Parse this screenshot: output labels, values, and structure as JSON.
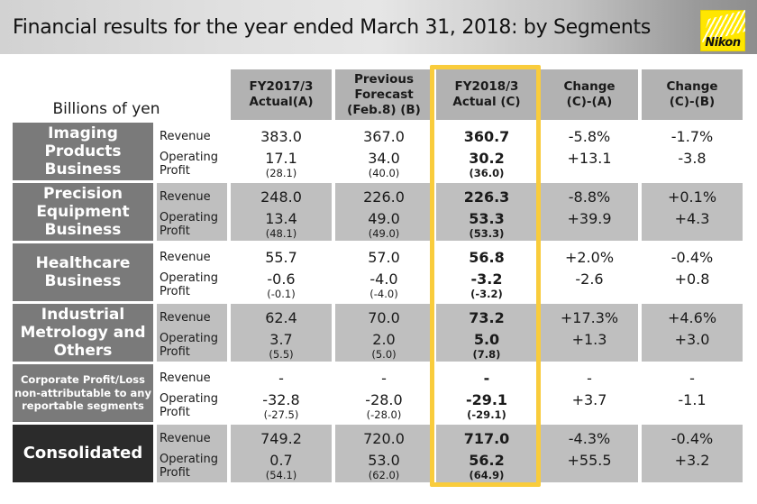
{
  "title": "Financial results for the year ended March 31, 2018: by Segments",
  "logo_text": "Nikon",
  "unit_label": "Billions of yen",
  "row_labels": {
    "revenue": "Revenue",
    "operating_profit": "Operating\nProfit"
  },
  "header": {
    "cols": [
      {
        "lines": [
          "FY2017/3",
          "Actual(A)"
        ]
      },
      {
        "lines": [
          "Previous",
          "Forecast",
          "(Feb.8) (B)"
        ]
      },
      {
        "lines": [
          "FY2018/3",
          "Actual (C)"
        ]
      },
      {
        "lines": [
          "Change",
          "(C)-(A)"
        ]
      },
      {
        "lines": [
          "Change",
          "(C)-(B)"
        ]
      }
    ]
  },
  "segments": [
    {
      "name": "Imaging Products Business",
      "revenue": {
        "a": "383.0",
        "b": "367.0",
        "c": "360.7",
        "ca": "-5.8%",
        "cb": "-1.7%"
      },
      "op": {
        "a": "17.1",
        "a_paren": "(28.1)",
        "b": "34.0",
        "b_paren": "(40.0)",
        "c": "30.2",
        "c_paren": "(36.0)",
        "ca": "+13.1",
        "cb": "-3.8"
      }
    },
    {
      "name": "Precision Equipment Business",
      "revenue": {
        "a": "248.0",
        "b": "226.0",
        "c": "226.3",
        "ca": "-8.8%",
        "cb": "+0.1%"
      },
      "op": {
        "a": "13.4",
        "a_paren": "(48.1)",
        "b": "49.0",
        "b_paren": "(49.0)",
        "c": "53.3",
        "c_paren": "(53.3)",
        "ca": "+39.9",
        "cb": "+4.3"
      }
    },
    {
      "name": "Healthcare Business",
      "revenue": {
        "a": "55.7",
        "b": "57.0",
        "c": "56.8",
        "ca": "+2.0%",
        "cb": "-0.4%"
      },
      "op": {
        "a": "-0.6",
        "a_paren": "(-0.1)",
        "b": "-4.0",
        "b_paren": "(-4.0)",
        "c": "-3.2",
        "c_paren": "(-3.2)",
        "ca": "-2.6",
        "cb": "+0.8"
      }
    },
    {
      "name": "Industrial Metrology and Others",
      "revenue": {
        "a": "62.4",
        "b": "70.0",
        "c": "73.2",
        "ca": "+17.3%",
        "cb": "+4.6%"
      },
      "op": {
        "a": "3.7",
        "a_paren": "(5.5)",
        "b": "2.0",
        "b_paren": "(5.0)",
        "c": "5.0",
        "c_paren": "(7.8)",
        "ca": "+1.3",
        "cb": "+3.0"
      }
    },
    {
      "name": "Corporate Profit/Loss non-attributable to any reportable segments",
      "revenue": {
        "a": "-",
        "b": "-",
        "c": "-",
        "ca": "-",
        "cb": "-"
      },
      "op": {
        "a": "-32.8",
        "a_paren": "(-27.5)",
        "b": "-28.0",
        "b_paren": "(-28.0)",
        "c": "-29.1",
        "c_paren": "(-29.1)",
        "ca": "+3.7",
        "cb": "-1.1"
      }
    },
    {
      "name": "Consolidated",
      "revenue": {
        "a": "749.2",
        "b": "720.0",
        "c": "717.0",
        "ca": "-4.3%",
        "cb": "-0.4%"
      },
      "op": {
        "a": "0.7",
        "a_paren": "(54.1)",
        "b": "53.0",
        "b_paren": "(62.0)",
        "c": "56.2",
        "c_paren": "(64.9)",
        "ca": "+55.5",
        "cb": "+3.2"
      }
    }
  ],
  "colors": {
    "accent_gold": "#f9cc3c",
    "segment_label_bg": "#7a7a7a",
    "consolidated_bg": "#2b2b2b",
    "stripe_bg": "#bfbfbf",
    "header_bg": "#b2b2b2",
    "logo_yellow": "#ffe600"
  }
}
